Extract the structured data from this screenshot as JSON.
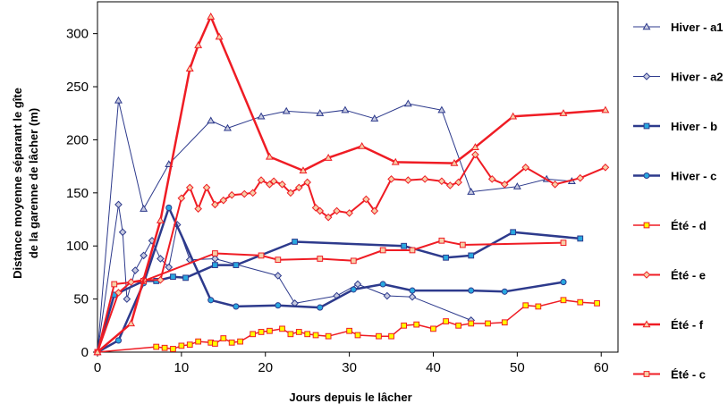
{
  "chart_data": {
    "type": "line",
    "xlabel": "Jours depuis le lâcher",
    "ylabel_line1": "Distance moyenne séparant le gîte",
    "ylabel_line2": "de la garenne de lâcher (m)",
    "xlim": [
      0,
      62
    ],
    "ylim": [
      0,
      330
    ],
    "x_ticks": [
      0,
      10,
      20,
      30,
      40,
      50,
      60
    ],
    "y_ticks": [
      0,
      50,
      100,
      150,
      200,
      250,
      300
    ],
    "grid": false,
    "legend_position": "right",
    "series": [
      {
        "name": "Hiver - a1",
        "color": "#2d3a8c",
        "width": 1,
        "marker": "triangle",
        "x": [
          0,
          2.5,
          5.5,
          8.5,
          13.5,
          15.5,
          19.5,
          22.5,
          26.5,
          29.5,
          33,
          37,
          41,
          44.5,
          50,
          53.5,
          56.5
        ],
        "y": [
          0,
          237,
          135,
          177,
          218,
          211,
          222,
          227,
          225,
          228,
          220,
          234,
          228,
          151,
          156,
          163,
          161
        ]
      },
      {
        "name": "Hiver - a2",
        "color": "#2d3a8c",
        "width": 1,
        "marker": "diamond",
        "x": [
          0,
          2.5,
          3,
          3.5,
          4.5,
          5.5,
          6.5,
          7.5,
          8.5,
          9.5,
          11,
          14,
          21.5,
          23.5,
          28.5,
          31,
          34.5,
          37.5,
          44.5
        ],
        "y": [
          0,
          139,
          113,
          50,
          77,
          91,
          105,
          88,
          80,
          120,
          87,
          88,
          72,
          46,
          53,
          64,
          53,
          52,
          30
        ]
      },
      {
        "name": "Hiver - b",
        "color": "#2d3a8c",
        "width": 2.5,
        "marker": "square",
        "x": [
          0,
          2,
          5.5,
          7,
          9,
          10.5,
          14,
          16.5,
          23.5,
          36.5,
          41.5,
          44.5,
          49.5,
          57.5
        ],
        "y": [
          0,
          54,
          67,
          67,
          71,
          70,
          82,
          82,
          104,
          100,
          89,
          91,
          113,
          107
        ]
      },
      {
        "name": "Hiver - c",
        "color": "#2d3a8c",
        "width": 2.5,
        "marker": "circle",
        "x": [
          0,
          2.5,
          5.5,
          8.5,
          13.5,
          16.5,
          21.5,
          26.5,
          30.5,
          34,
          37.5,
          44.5,
          48.5,
          55.5
        ],
        "y": [
          0,
          11,
          65,
          136,
          49,
          43,
          44,
          42,
          59,
          64,
          58,
          58,
          57,
          66
        ]
      },
      {
        "name": "Été - d",
        "color": "#ef1c24",
        "width": 1.5,
        "marker": "square",
        "fill": "#ffff00",
        "x": [
          0,
          7,
          8,
          9,
          10,
          11,
          12,
          13.5,
          14,
          15,
          16,
          17,
          18.5,
          19.5,
          20.5,
          22,
          23,
          24,
          25,
          26,
          27.5,
          30,
          31,
          33.5,
          35,
          36.5,
          38,
          40,
          41.5,
          43,
          44.5,
          46.5,
          48.5,
          51,
          52.5,
          55.5,
          57.5,
          59.5
        ],
        "y": [
          0,
          5,
          4,
          3,
          6,
          7,
          10,
          9,
          8,
          13,
          9,
          10,
          17,
          19,
          20,
          22,
          17,
          19,
          17,
          16,
          15,
          20,
          16,
          15,
          15,
          25,
          26,
          22,
          29,
          25,
          27,
          27,
          28,
          44,
          43,
          49,
          47,
          46
        ]
      },
      {
        "name": "Été - e",
        "color": "#ef1c24",
        "width": 2,
        "marker": "diamond",
        "fill": "#f6cfa8",
        "x": [
          0,
          2.5,
          4,
          5.5,
          7.5,
          10,
          11,
          12,
          13,
          14,
          15,
          16,
          17.5,
          18.5,
          19.5,
          20.5,
          21,
          22,
          23,
          24,
          25,
          26,
          26.5,
          27.5,
          28.5,
          30,
          32,
          33,
          35,
          37,
          39,
          41,
          42,
          43,
          45,
          47,
          48.5,
          51,
          54.5,
          57.5,
          60.5
        ],
        "y": [
          0,
          56,
          66,
          68,
          68,
          145,
          155,
          135,
          155,
          139,
          143,
          148,
          149,
          150,
          162,
          158,
          161,
          158,
          150,
          155,
          160,
          136,
          133,
          127,
          133,
          131,
          144,
          133,
          163,
          162,
          163,
          161,
          157,
          160,
          186,
          163,
          158,
          174,
          158,
          164,
          174
        ]
      },
      {
        "name": "Été - f",
        "color": "#ef1c24",
        "width": 2.5,
        "marker": "triangle",
        "fill": "#f6cfa8",
        "x": [
          0,
          4,
          7.5,
          11,
          12,
          13.5,
          14.5,
          20.5,
          24.5,
          27.5,
          31.5,
          35.5,
          42.5,
          45,
          49.5,
          55.5,
          60.5
        ],
        "y": [
          0,
          27,
          124,
          267,
          289,
          316,
          297,
          184,
          171,
          183,
          194,
          179,
          178,
          193,
          222,
          225,
          228
        ]
      },
      {
        "name": "Été - c",
        "color": "#ef1c24",
        "width": 2,
        "marker": "square",
        "fill": "#f6cfa8",
        "x": [
          0,
          2,
          5.5,
          14,
          19.5,
          21.5,
          26.5,
          30.5,
          34,
          37.5,
          41,
          43.5,
          55.5
        ],
        "y": [
          0,
          64,
          67,
          93,
          91,
          87,
          88,
          86,
          96,
          96,
          105,
          101,
          103
        ]
      }
    ]
  }
}
